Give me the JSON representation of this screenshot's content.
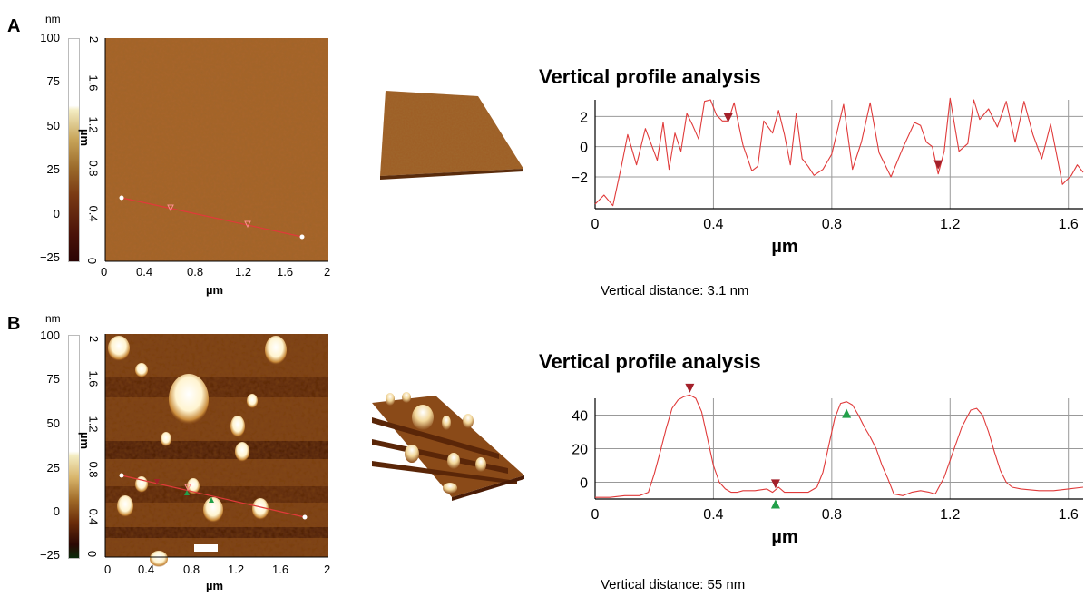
{
  "panels": [
    {
      "letter": "A",
      "scale": {
        "unit": "nm",
        "ticks": [
          "100",
          "75",
          "50",
          "25",
          "0",
          "−25"
        ]
      },
      "afm_image": {
        "x_ticks": [
          "0",
          "0.4",
          "0.8",
          "1.2",
          "1.6",
          "2"
        ],
        "y_ticks": [
          "0",
          "0.4",
          "0.8",
          "1.2",
          "1.6",
          "2"
        ],
        "x_label": "µm",
        "y_label": "µm",
        "colors": {
          "base": "#a9652a",
          "line": "#e03a3a"
        }
      },
      "profile_title": "Vertical profile analysis",
      "vertical_distance": "Vertical distance: 3.1 nm"
    },
    {
      "letter": "B",
      "scale": {
        "unit": "nm",
        "ticks": [
          "100",
          "75",
          "50",
          "25",
          "0",
          "−25"
        ]
      },
      "afm_image": {
        "x_ticks": [
          "0",
          "0.4",
          "0.8",
          "1.2",
          "1.6",
          "2"
        ],
        "y_ticks": [
          "0",
          "0.4",
          "0.8",
          "1.2",
          "1.6",
          "2"
        ],
        "x_label": "µm",
        "y_label": "µm",
        "colors": {
          "base": "#7a3e12",
          "line": "#e03a3a"
        }
      },
      "profile_title": "Vertical profile analysis",
      "vertical_distance": "Vertical distance: 55 nm"
    }
  ],
  "chart_data": [
    {
      "type": "line",
      "title": "Vertical profile analysis",
      "xlabel": "µm",
      "ylabel": "",
      "xlim": [
        0,
        1.65
      ],
      "ylim": [
        -4.1,
        3.1
      ],
      "x_ticks": [
        "0",
        "0.4",
        "0.8",
        "1.2",
        "1.6"
      ],
      "y_ticks": [
        "2",
        "0",
        "−2"
      ],
      "y_tick_values": [
        2,
        0,
        -2
      ],
      "grid": true,
      "line_color": "#e03a3a",
      "x": [
        0,
        0.03,
        0.06,
        0.09,
        0.11,
        0.14,
        0.17,
        0.21,
        0.23,
        0.25,
        0.27,
        0.29,
        0.31,
        0.33,
        0.35,
        0.37,
        0.39,
        0.41,
        0.43,
        0.45,
        0.47,
        0.5,
        0.53,
        0.55,
        0.57,
        0.6,
        0.62,
        0.64,
        0.66,
        0.68,
        0.7,
        0.72,
        0.74,
        0.77,
        0.8,
        0.84,
        0.87,
        0.9,
        0.93,
        0.96,
        1.0,
        1.04,
        1.08,
        1.1,
        1.12,
        1.14,
        1.16,
        1.18,
        1.2,
        1.23,
        1.26,
        1.28,
        1.3,
        1.33,
        1.36,
        1.39,
        1.42,
        1.45,
        1.48,
        1.51,
        1.54,
        1.58,
        1.61,
        1.63,
        1.65
      ],
      "y": [
        -3.8,
        -3.2,
        -3.9,
        -1.2,
        0.8,
        -1.2,
        1.2,
        -0.9,
        1.6,
        -1.5,
        0.9,
        -0.3,
        2.2,
        1.4,
        0.5,
        3.0,
        3.1,
        2.1,
        1.7,
        1.7,
        2.9,
        0.1,
        -1.6,
        -1.3,
        1.7,
        0.9,
        2.4,
        0.8,
        -1.2,
        2.2,
        -0.8,
        -1.3,
        -1.9,
        -1.5,
        -0.5,
        2.8,
        -1.5,
        0.3,
        2.9,
        -0.4,
        -2.0,
        -0.1,
        1.6,
        1.4,
        0.3,
        0.0,
        -1.8,
        -0.3,
        3.2,
        -0.3,
        0.2,
        3.1,
        1.8,
        2.5,
        1.3,
        3.0,
        0.3,
        3.0,
        0.8,
        -0.8,
        1.5,
        -2.5,
        -1.9,
        -1.2,
        -1.7
      ],
      "markers": [
        {
          "x": 0.45,
          "y": 1.9,
          "direction": "down",
          "color": "#a4202a"
        },
        {
          "x": 1.16,
          "y": -1.2,
          "direction": "down",
          "color": "#a4202a"
        }
      ]
    },
    {
      "type": "line",
      "title": "Vertical profile analysis",
      "xlabel": "µm",
      "ylabel": "",
      "xlim": [
        0,
        1.65
      ],
      "ylim": [
        -10,
        50
      ],
      "x_ticks": [
        "0",
        "0.4",
        "0.8",
        "1.2",
        "1.6"
      ],
      "y_ticks": [
        "40",
        "20",
        "0"
      ],
      "y_tick_values": [
        40,
        20,
        0
      ],
      "grid": true,
      "line_color": "#e03a3a",
      "x": [
        0,
        0.05,
        0.1,
        0.15,
        0.18,
        0.2,
        0.22,
        0.24,
        0.26,
        0.28,
        0.3,
        0.32,
        0.34,
        0.36,
        0.38,
        0.4,
        0.42,
        0.44,
        0.46,
        0.48,
        0.5,
        0.54,
        0.58,
        0.6,
        0.62,
        0.64,
        0.68,
        0.72,
        0.75,
        0.77,
        0.79,
        0.81,
        0.83,
        0.85,
        0.87,
        0.89,
        0.91,
        0.93,
        0.95,
        0.97,
        0.99,
        1.01,
        1.04,
        1.07,
        1.1,
        1.13,
        1.15,
        1.18,
        1.21,
        1.24,
        1.27,
        1.29,
        1.31,
        1.33,
        1.35,
        1.37,
        1.39,
        1.41,
        1.44,
        1.5,
        1.55,
        1.6,
        1.65
      ],
      "y": [
        -9,
        -9,
        -8,
        -8,
        -6,
        5,
        18,
        32,
        44,
        49,
        51,
        52,
        50,
        42,
        26,
        10,
        0,
        -4,
        -6,
        -6,
        -5,
        -5,
        -4,
        -6,
        -3,
        -6,
        -6,
        -6,
        -3,
        6,
        22,
        38,
        47,
        48,
        46,
        40,
        33,
        27,
        20,
        10,
        2,
        -7,
        -8,
        -6,
        -5,
        -6,
        -7,
        3,
        18,
        33,
        43,
        44,
        40,
        30,
        18,
        7,
        0,
        -3,
        -4,
        -5,
        -5,
        -4,
        -3
      ],
      "markers": [
        {
          "x": 0.32,
          "y": 56,
          "direction": "down",
          "color": "#a4202a"
        },
        {
          "x": 0.61,
          "y": -1,
          "direction": "down",
          "color": "#a4202a"
        },
        {
          "x": 0.61,
          "y": -13,
          "direction": "up",
          "color": "#22a04a"
        },
        {
          "x": 0.85,
          "y": 41,
          "direction": "up",
          "color": "#22a04a"
        }
      ]
    }
  ]
}
